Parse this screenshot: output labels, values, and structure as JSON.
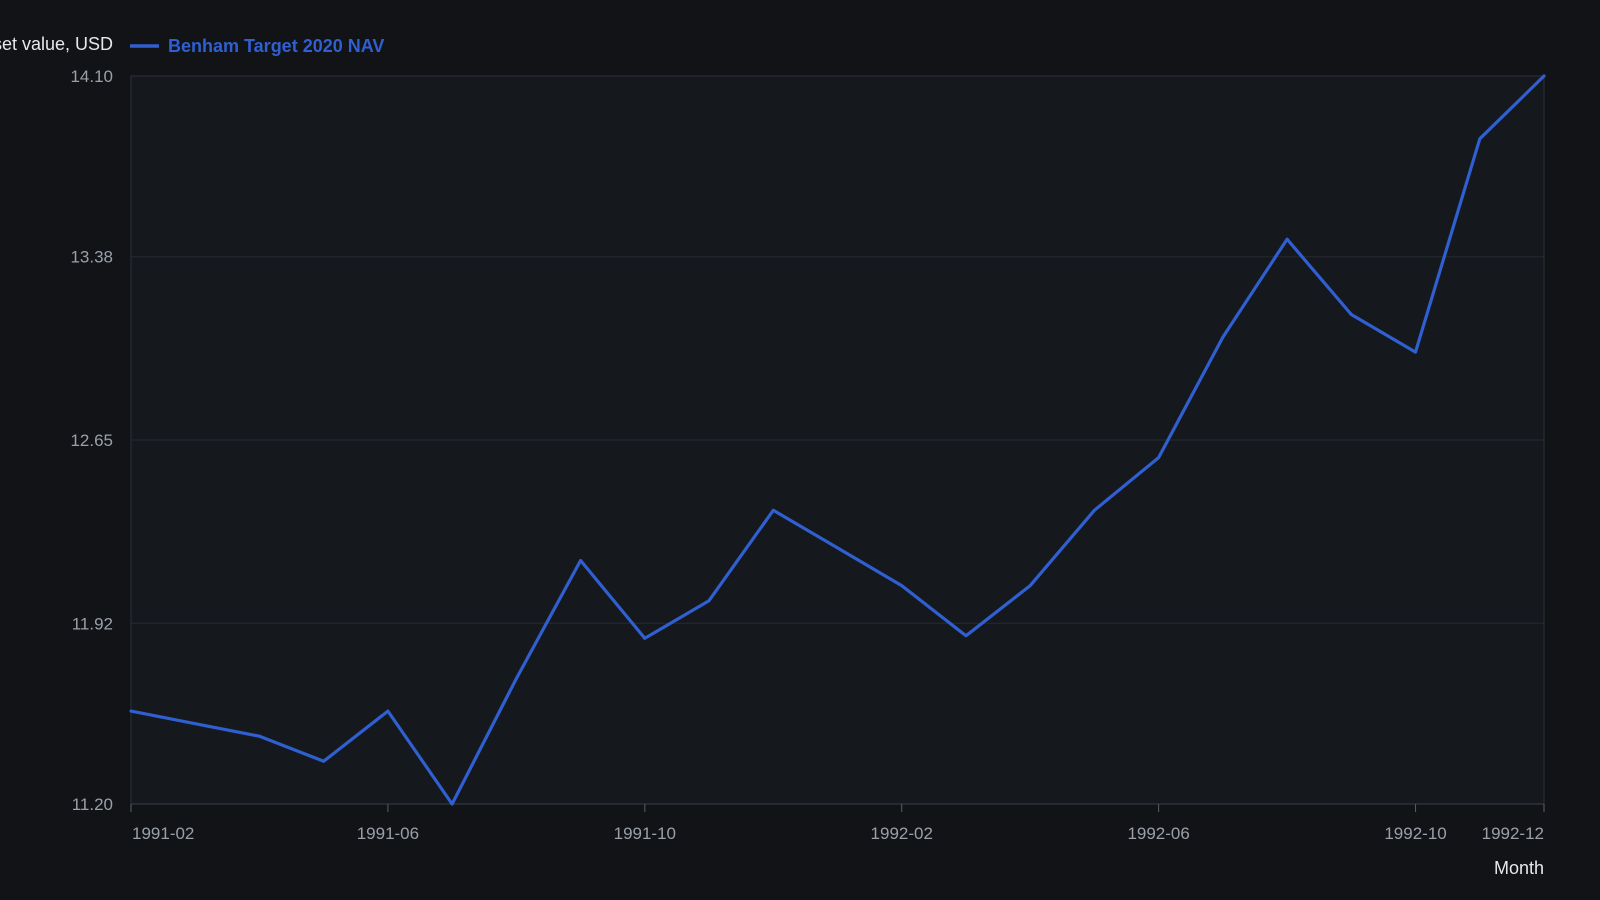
{
  "chart_data": {
    "type": "line",
    "xlabel": "Month",
    "ylabel": "Net asset value, USD",
    "legend_position": "top-left",
    "grid": true,
    "ylim": [
      11.2,
      14.1
    ],
    "y_ticks": [
      "11.20",
      "11.92",
      "12.65",
      "13.38",
      "14.10"
    ],
    "x_tick_labels": [
      "1991-02",
      "1991-06",
      "1991-10",
      "1992-02",
      "1992-06",
      "1992-10",
      "1992-12"
    ],
    "x": [
      "1991-02",
      "1991-03",
      "1991-04",
      "1991-05",
      "1991-06",
      "1991-07",
      "1991-08",
      "1991-09",
      "1991-10",
      "1991-11",
      "1991-12",
      "1992-01",
      "1992-02",
      "1992-03",
      "1992-04",
      "1992-05",
      "1992-06",
      "1992-07",
      "1992-08",
      "1992-09",
      "1992-10",
      "1992-11",
      "1992-12"
    ],
    "series": [
      {
        "name": "Benham Target 2020 NAV",
        "color": "#2f5fd0",
        "values": [
          11.57,
          11.52,
          11.47,
          11.37,
          11.57,
          11.2,
          11.7,
          12.17,
          11.86,
          12.01,
          12.37,
          12.22,
          12.07,
          11.87,
          12.07,
          12.37,
          12.58,
          13.06,
          13.45,
          13.15,
          13.0,
          13.85,
          14.1
        ]
      }
    ]
  }
}
